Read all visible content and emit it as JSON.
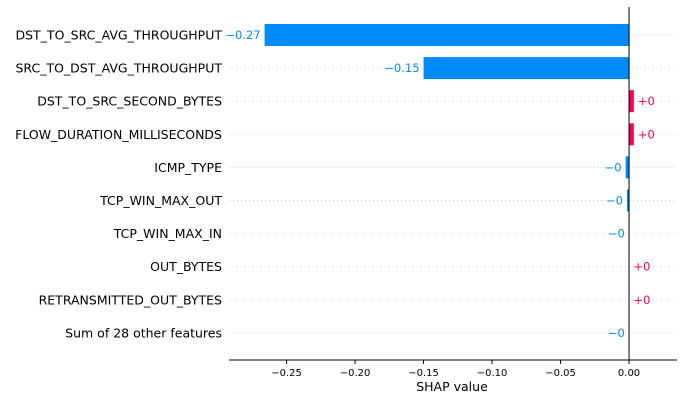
{
  "chart_data": {
    "type": "bar",
    "orientation": "horizontal",
    "xlabel": "SHAP value",
    "xlim": [
      -0.292,
      0.035
    ],
    "xticks": [
      -0.25,
      -0.2,
      -0.15,
      -0.1,
      -0.05,
      0.0
    ],
    "xtick_labels": [
      "−0.25",
      "−0.20",
      "−0.15",
      "−0.10",
      "−0.05",
      "0.00"
    ],
    "grid": "horizontal-dotted",
    "colors": {
      "positive": "#ff0051",
      "negative": "#008bfb"
    },
    "categories": [
      "DST_TO_SRC_AVG_THROUGHPUT",
      "SRC_TO_DST_AVG_THROUGHPUT",
      "DST_TO_SRC_SECOND_BYTES",
      "FLOW_DURATION_MILLISECONDS",
      "ICMP_TYPE",
      "TCP_WIN_MAX_OUT",
      "TCP_WIN_MAX_IN",
      "OUT_BYTES",
      "RETRANSMITTED_OUT_BYTES",
      "Sum of 28 other features"
    ],
    "values": [
      -0.266,
      -0.15,
      0.0035,
      0.0035,
      -0.0025,
      -0.0015,
      -0.0002,
      0.0002,
      0.0002,
      -0.0002
    ],
    "value_labels": [
      "−0.27",
      "−0.15",
      "+0",
      "+0",
      "−0",
      "−0",
      "−0",
      "+0",
      "+0",
      "−0"
    ]
  }
}
